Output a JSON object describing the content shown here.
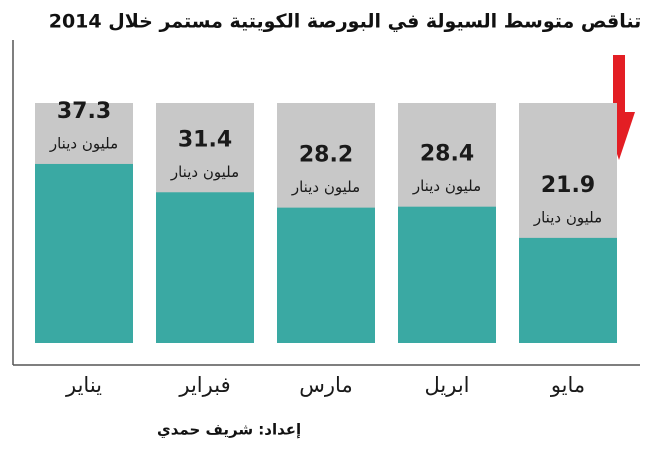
{
  "chart_data": {
    "type": "bar",
    "title": "تناقص متوسط السيولة في البورصة الكويتية مستمر خلال 2014",
    "categories": [
      "يناير",
      "فبراير",
      "مارس",
      "ابريل",
      "مايو"
    ],
    "values": [
      37.3,
      31.4,
      28.2,
      28.4,
      21.9
    ],
    "unit": "مليون دينار",
    "color": "#3aa9a3",
    "background_color": "#c8c8c8",
    "ylim": [
      0,
      50
    ],
    "credit": "إعداد: شريف حمدي"
  }
}
